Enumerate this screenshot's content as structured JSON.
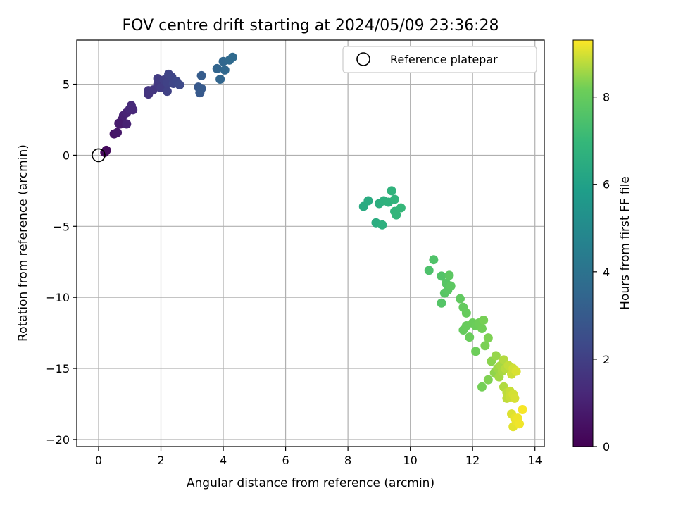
{
  "chart_data": {
    "type": "scatter",
    "title": "FOV centre drift starting at 2024/05/09 23:36:28",
    "xlabel": "Angular distance from reference (arcmin)",
    "ylabel": "Rotation from reference (arcmin)",
    "xlim": [
      -0.7,
      14.3
    ],
    "ylim": [
      -20.5,
      8.1
    ],
    "xticks": [
      0,
      2,
      4,
      6,
      8,
      10,
      12,
      14
    ],
    "yticks": [
      -20,
      -15,
      -10,
      -5,
      0,
      5
    ],
    "grid": true,
    "legend": {
      "position": "top-right",
      "entries": [
        "Reference platepar"
      ]
    },
    "reference_point": {
      "x": 0,
      "y": 0
    },
    "colorbar": {
      "label": "Hours from first FF file",
      "colormap": "viridis",
      "range": [
        0,
        9.3
      ],
      "ticks": [
        0,
        2,
        4,
        6,
        8
      ]
    },
    "points": [
      [
        0.2,
        0.2,
        0.2
      ],
      [
        0.25,
        0.35,
        0.3
      ],
      [
        0.5,
        1.5,
        0.6
      ],
      [
        0.6,
        1.6,
        0.7
      ],
      [
        0.65,
        2.25,
        0.8
      ],
      [
        0.75,
        2.5,
        0.9
      ],
      [
        0.7,
        2.2,
        0.85
      ],
      [
        0.8,
        2.8,
        1.0
      ],
      [
        0.9,
        3.0,
        1.1
      ],
      [
        0.9,
        2.2,
        1.05
      ],
      [
        1.0,
        3.25,
        1.2
      ],
      [
        1.05,
        3.5,
        1.3
      ],
      [
        1.1,
        3.2,
        1.25
      ],
      [
        1.6,
        4.3,
        1.6
      ],
      [
        1.6,
        4.55,
        1.65
      ],
      [
        1.75,
        4.6,
        1.7
      ],
      [
        1.9,
        5.0,
        1.8
      ],
      [
        1.9,
        5.4,
        1.85
      ],
      [
        2.0,
        4.75,
        1.9
      ],
      [
        2.1,
        5.3,
        2.0
      ],
      [
        2.2,
        4.5,
        2.05
      ],
      [
        2.2,
        5.1,
        2.1
      ],
      [
        2.25,
        5.7,
        2.15
      ],
      [
        2.35,
        5.5,
        2.2
      ],
      [
        2.4,
        5.05,
        2.25
      ],
      [
        2.5,
        5.2,
        2.3
      ],
      [
        2.6,
        4.95,
        2.35
      ],
      [
        3.2,
        4.8,
        2.9
      ],
      [
        3.25,
        4.4,
        2.95
      ],
      [
        3.3,
        4.7,
        3.0
      ],
      [
        3.3,
        5.6,
        3.05
      ],
      [
        3.8,
        6.1,
        3.4
      ],
      [
        3.9,
        5.35,
        3.45
      ],
      [
        4.0,
        6.6,
        3.5
      ],
      [
        4.05,
        6.0,
        3.55
      ],
      [
        4.2,
        6.7,
        3.6
      ],
      [
        4.3,
        6.9,
        3.65
      ],
      [
        8.5,
        -3.6,
        6.4
      ],
      [
        8.65,
        -3.2,
        6.45
      ],
      [
        8.9,
        -4.75,
        6.5
      ],
      [
        9.0,
        -3.4,
        6.55
      ],
      [
        9.1,
        -4.9,
        6.6
      ],
      [
        9.15,
        -3.2,
        6.65
      ],
      [
        9.3,
        -3.3,
        6.7
      ],
      [
        9.4,
        -2.5,
        6.75
      ],
      [
        9.5,
        -3.1,
        6.8
      ],
      [
        9.5,
        -3.95,
        6.85
      ],
      [
        9.55,
        -4.2,
        6.9
      ],
      [
        9.7,
        -3.7,
        6.95
      ],
      [
        10.6,
        -8.1,
        7.5
      ],
      [
        10.75,
        -7.35,
        7.55
      ],
      [
        11.0,
        -8.5,
        7.6
      ],
      [
        11.0,
        -10.4,
        7.65
      ],
      [
        11.1,
        -9.7,
        7.7
      ],
      [
        11.15,
        -9.0,
        7.72
      ],
      [
        11.2,
        -9.5,
        7.75
      ],
      [
        11.25,
        -8.45,
        7.8
      ],
      [
        11.3,
        -9.2,
        7.82
      ],
      [
        11.6,
        -10.1,
        7.9
      ],
      [
        11.7,
        -10.7,
        7.95
      ],
      [
        11.7,
        -12.3,
        8.0
      ],
      [
        11.8,
        -11.1,
        8.02
      ],
      [
        11.8,
        -12.0,
        8.05
      ],
      [
        11.9,
        -12.8,
        8.08
      ],
      [
        12.0,
        -11.8,
        8.1
      ],
      [
        12.1,
        -12.0,
        8.12
      ],
      [
        12.1,
        -13.8,
        8.15
      ],
      [
        12.2,
        -11.8,
        8.18
      ],
      [
        12.3,
        -12.2,
        8.2
      ],
      [
        12.3,
        -16.3,
        8.22
      ],
      [
        12.35,
        -11.6,
        8.25
      ],
      [
        12.4,
        -13.4,
        8.28
      ],
      [
        12.5,
        -12.85,
        8.3
      ],
      [
        12.5,
        -15.8,
        8.32
      ],
      [
        12.6,
        -14.5,
        8.4
      ],
      [
        12.7,
        -15.3,
        8.45
      ],
      [
        12.75,
        -14.1,
        8.5
      ],
      [
        12.8,
        -15.0,
        8.55
      ],
      [
        12.85,
        -15.6,
        8.6
      ],
      [
        12.9,
        -14.8,
        8.62
      ],
      [
        12.95,
        -15.2,
        8.65
      ],
      [
        13.0,
        -16.3,
        8.7
      ],
      [
        13.0,
        -14.4,
        8.72
      ],
      [
        13.05,
        -15.0,
        8.75
      ],
      [
        13.1,
        -16.7,
        8.8
      ],
      [
        13.1,
        -17.1,
        8.82
      ],
      [
        13.15,
        -14.8,
        8.85
      ],
      [
        13.2,
        -16.6,
        8.88
      ],
      [
        13.2,
        -17.0,
        8.9
      ],
      [
        13.25,
        -15.4,
        8.92
      ],
      [
        13.3,
        -15.0,
        8.95
      ],
      [
        13.3,
        -16.8,
        8.97
      ],
      [
        13.35,
        -17.1,
        9.0
      ],
      [
        13.4,
        -15.2,
        9.02
      ],
      [
        13.25,
        -18.2,
        9.05
      ],
      [
        13.3,
        -19.1,
        9.1
      ],
      [
        13.35,
        -18.5,
        9.12
      ],
      [
        13.4,
        -18.7,
        9.15
      ],
      [
        13.45,
        -18.5,
        9.18
      ],
      [
        13.5,
        -18.9,
        9.2
      ],
      [
        13.6,
        -17.9,
        9.25
      ]
    ]
  }
}
